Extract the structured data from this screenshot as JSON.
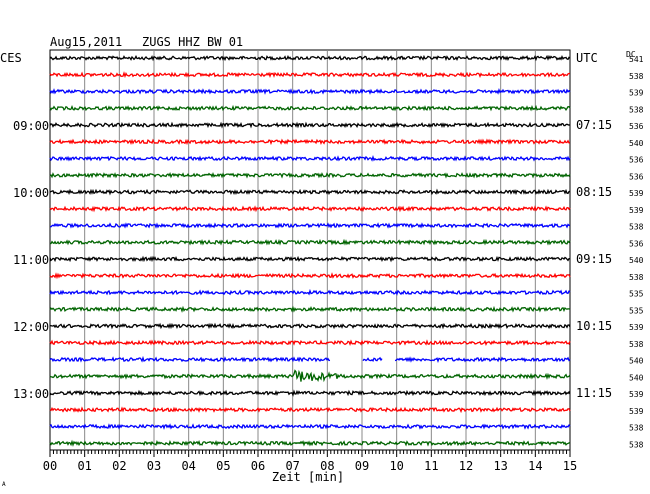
{
  "header": {
    "date": "Aug15,2011",
    "station": "ZUGS HHZ BW 01",
    "left_tz": "CES",
    "right_tz": "UTC",
    "dc_label": "DC"
  },
  "chart_data": {
    "type": "line",
    "title": "Aug15,2011   ZUGS HHZ BW 01",
    "xlabel": "Zeit [min]",
    "xlim": [
      0,
      15
    ],
    "x_ticks": [
      "00",
      "01",
      "02",
      "03",
      "04",
      "05",
      "06",
      "07",
      "08",
      "09",
      "10",
      "11",
      "12",
      "13",
      "14",
      "15"
    ],
    "trace_colors": [
      "#000000",
      "#ff0000",
      "#0000ff",
      "#006400"
    ],
    "left_hour_labels": [
      {
        "trace": 4,
        "label": "09:00"
      },
      {
        "trace": 8,
        "label": "10:00"
      },
      {
        "trace": 12,
        "label": "11:00"
      },
      {
        "trace": 16,
        "label": "12:00"
      },
      {
        "trace": 20,
        "label": "13:00"
      }
    ],
    "right_hour_labels": [
      {
        "trace": 0,
        "label": "UTC"
      },
      {
        "trace": 4,
        "label": "07:15"
      },
      {
        "trace": 8,
        "label": "08:15"
      },
      {
        "trace": 12,
        "label": "09:15"
      },
      {
        "trace": 16,
        "label": "10:15"
      },
      {
        "trace": 20,
        "label": "11:15"
      }
    ],
    "dc_offsets": [
      541,
      538,
      539,
      538,
      536,
      540,
      536,
      536,
      539,
      539,
      538,
      536,
      540,
      538,
      535,
      535,
      539,
      538,
      540,
      540,
      539,
      539,
      538,
      538
    ],
    "gaps": [
      {
        "trace": 18,
        "from_min": 8.1,
        "to_min": 9.0
      },
      {
        "trace": 18,
        "from_min": 9.6,
        "to_min": 9.95
      }
    ],
    "events": [
      {
        "trace": 19,
        "at_min": 7.0,
        "duration_min": 1.6,
        "note": "seismic signal"
      },
      {
        "trace": 20,
        "at_min": 7.0,
        "duration_min": 0.1,
        "note": "spike"
      }
    ],
    "footer_mark": "A"
  }
}
